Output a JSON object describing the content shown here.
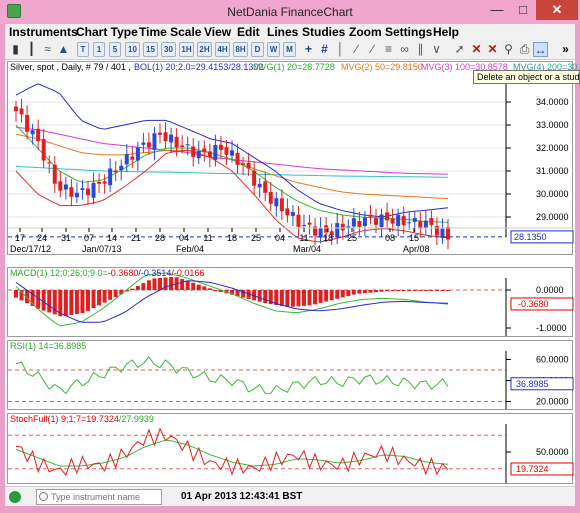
{
  "window": {
    "title": "NetDania FinanceChart"
  },
  "menu": [
    "Instruments",
    "Chart Type",
    "Time Scale",
    "View",
    "Edit",
    "Lines",
    "Studies",
    "Zoom",
    "Settings",
    "Help"
  ],
  "toolbar": {
    "periods": [
      "T",
      "1",
      "5",
      "10",
      "15",
      "30",
      "1H",
      "2H",
      "4H",
      "8H",
      "D",
      "W",
      "M"
    ],
    "tooltip": "Delete an object or a stud"
  },
  "price_panel": {
    "header": "Silver, spot , Daily, # 79 / 401 ,",
    "bol": "BOL(1) 20;2.0=29.4153/28.1302",
    "mvg1": "MVG(1) 20=28.7728",
    "mvg2": "MVG(2) 50=29.8150",
    "mvg3": "MVG(3) 100=30.8578",
    "mvg4": "MVG(4) 200=30.7",
    "yticks": [
      "34.0000",
      "33.0000",
      "32.0000",
      "31.0000",
      "30.0000",
      "29.0000"
    ],
    "last": "28.1350",
    "xlabels": [
      "17",
      "24",
      "31",
      "07",
      "14",
      "21",
      "28",
      "04",
      "11",
      "18",
      "25",
      "04",
      "11",
      "18",
      "25",
      "08",
      "15"
    ],
    "xlabels2": [
      "Dec/17/12",
      "Jan/07/13",
      "Feb/04",
      "Mar/04",
      "Apr/08"
    ]
  },
  "macd_panel": {
    "header": "MACD(1) 12;0;26;0;9 0=",
    "v1": "-0.3680",
    "v2": "/-0.3514",
    "v3": "/-0.0166",
    "yticks": [
      "0.0000",
      "-1.0000"
    ],
    "last": "-0.3680"
  },
  "rsi_panel": {
    "header": "RSI(1) 14=36.8985",
    "yticks": [
      "60.0000",
      "40.0000",
      "20.0000"
    ],
    "last": "36.8985"
  },
  "stoch_panel": {
    "header": "StochFull(1) 9;1;7=",
    "v1": "19.7324",
    "v2": "/27.9939",
    "yticks": [
      "50.0000"
    ],
    "last": "19.7324"
  },
  "statusbar": {
    "placeholder": "Type instrument name",
    "time": "01 Apr 2013 12:43:41 BST"
  },
  "colors": {
    "up": "#2b49d8",
    "down": "#e02020",
    "bol": "#2b2bc8",
    "mvg1": "#3db83d",
    "mvg2": "#e07a1e",
    "mvg3": "#d33ad3",
    "mvg4": "#33c0c0",
    "lowerbol": "#e03030",
    "last_line": "#2030c0"
  }
}
